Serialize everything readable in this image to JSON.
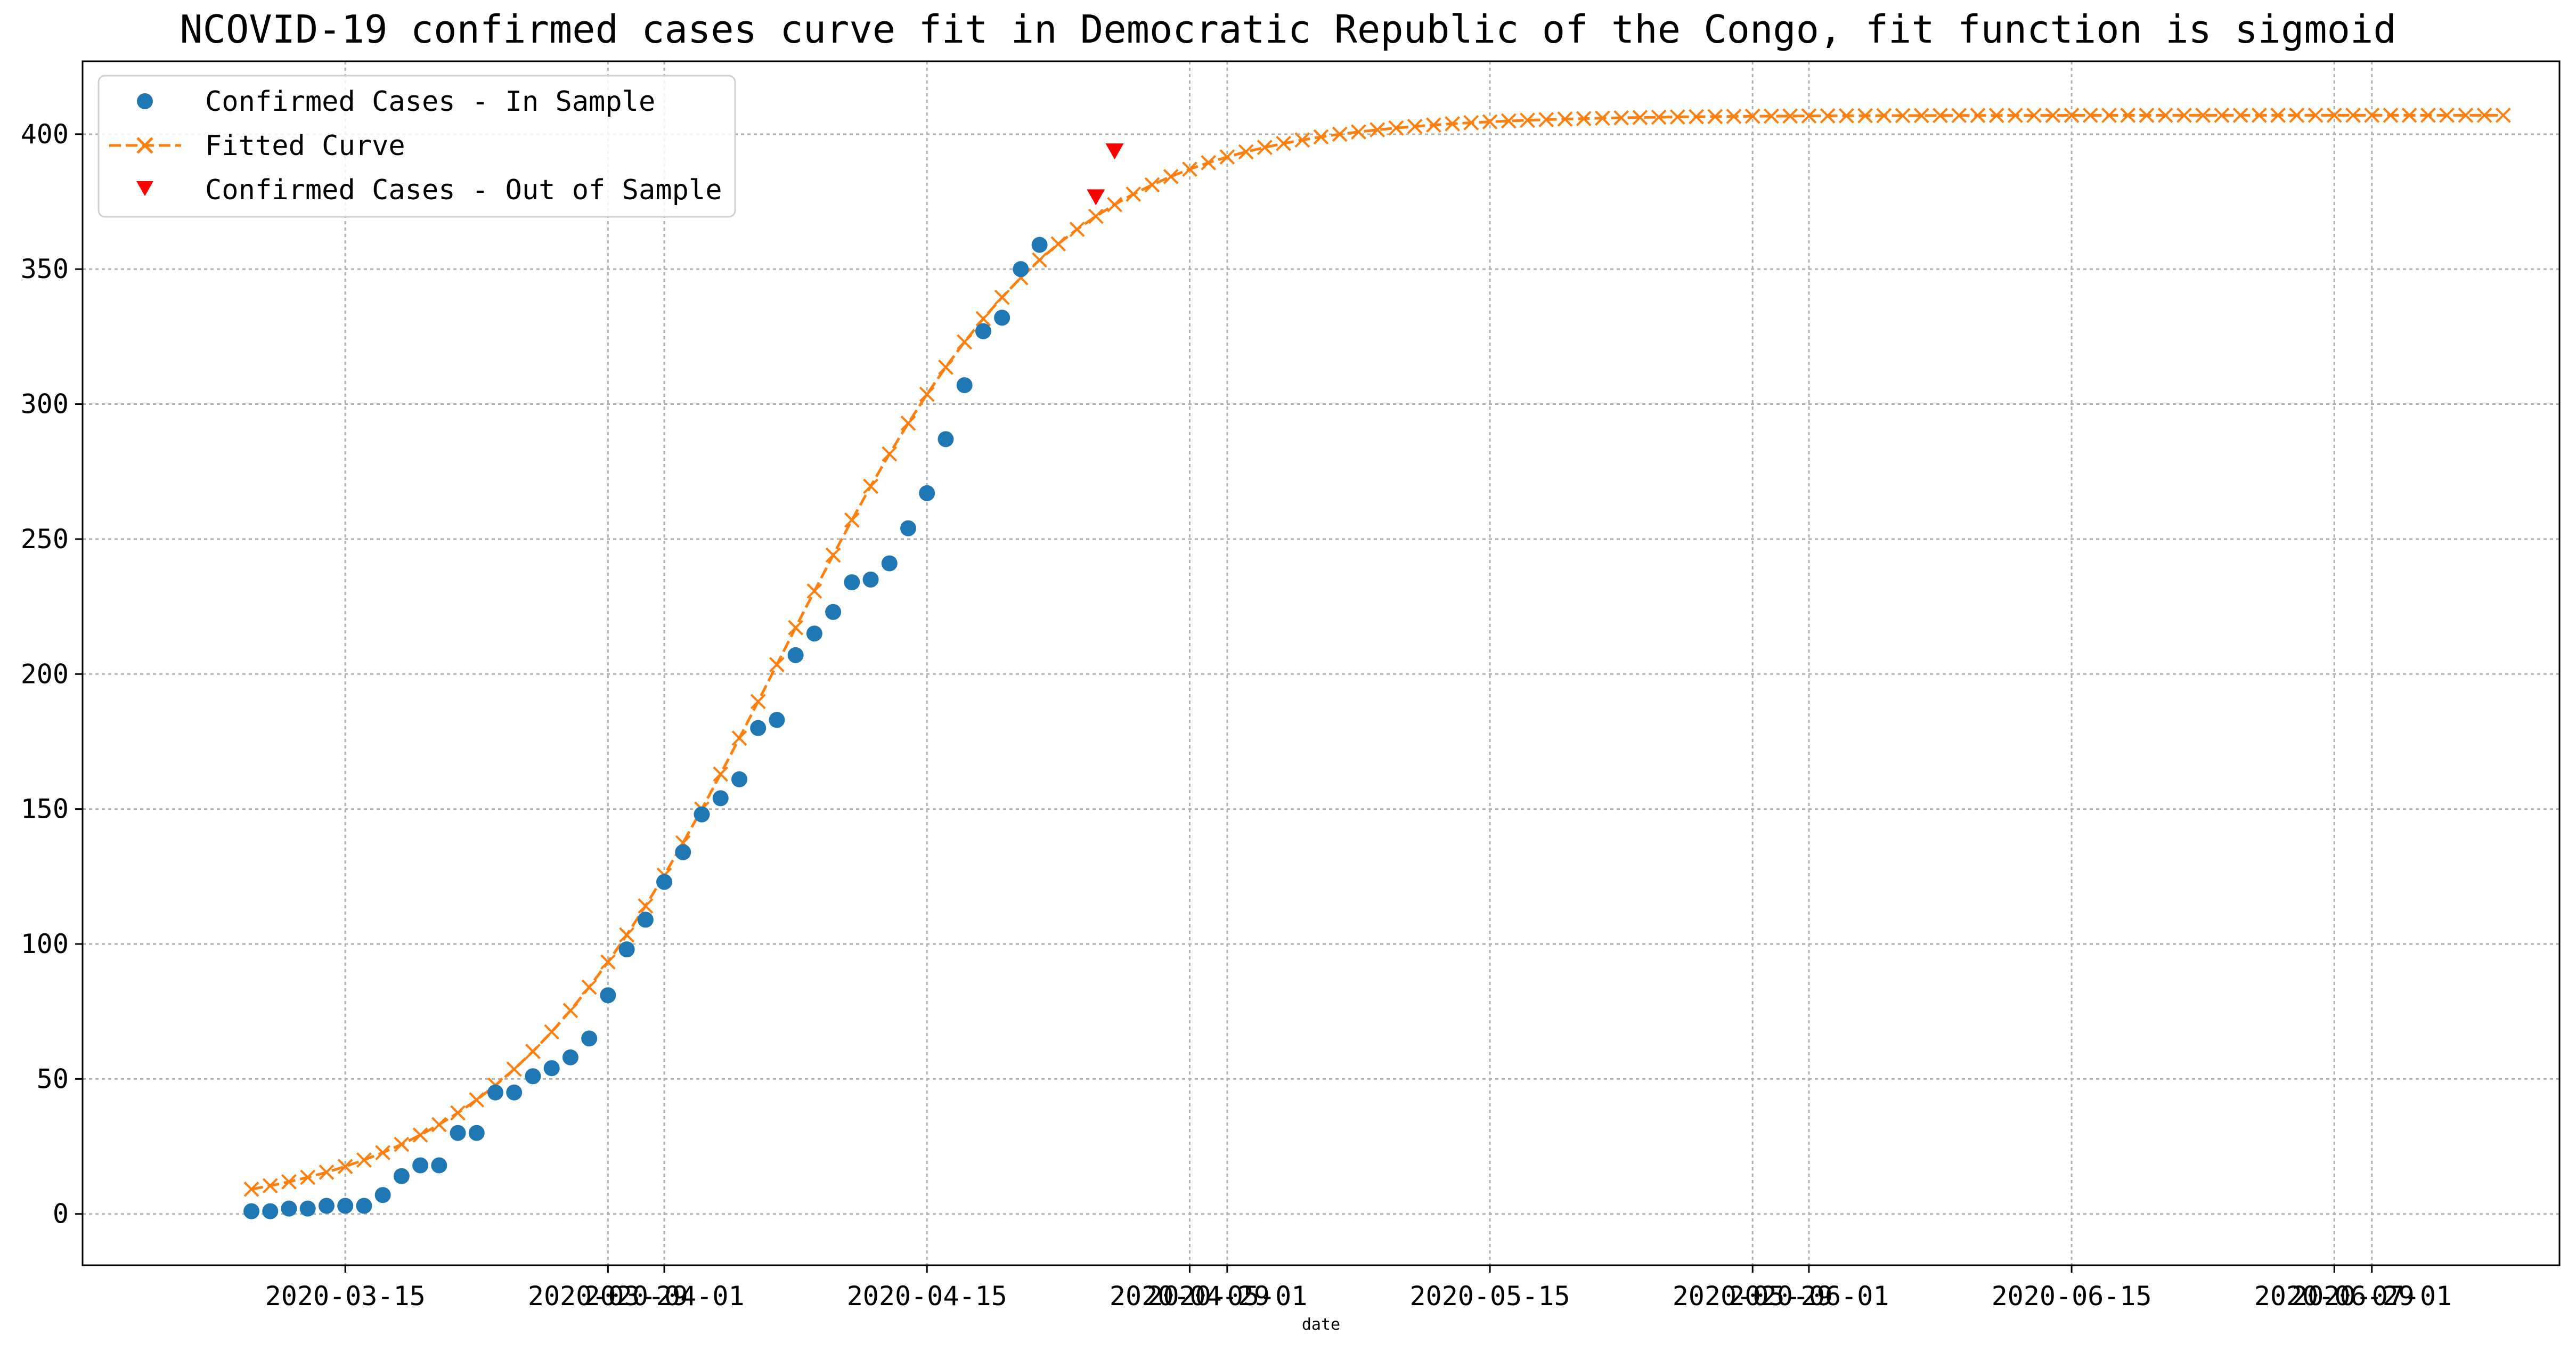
{
  "chart_data": {
    "type": "line",
    "title": "NCOVID-19 confirmed cases curve fit in Democratic Republic of the Congo, fit function is sigmoid",
    "xlabel": "date",
    "ylabel": "",
    "ylim": [
      -19,
      427
    ],
    "xlim": [
      "2020-03-01",
      "2020-07-11"
    ],
    "grid": true,
    "legend_position": "top-left",
    "y_ticks": [
      0,
      50,
      100,
      150,
      200,
      250,
      300,
      350,
      400
    ],
    "x_ticks": [
      {
        "date": "2020-03-15",
        "label": "2020-03-15"
      },
      {
        "date": "2020-03-29",
        "label": "2020-03-29"
      },
      {
        "date": "2020-04-01",
        "label": "2020-04-01"
      },
      {
        "date": "2020-04-15",
        "label": "2020-04-15"
      },
      {
        "date": "2020-04-29",
        "label": "2020-04-29"
      },
      {
        "date": "2020-05-01",
        "label": "2020-05-01"
      },
      {
        "date": "2020-05-15",
        "label": "2020-05-15"
      },
      {
        "date": "2020-05-29",
        "label": "2020-05-29"
      },
      {
        "date": "2020-06-01",
        "label": "2020-06-01"
      },
      {
        "date": "2020-06-15",
        "label": "2020-06-15"
      },
      {
        "date": "2020-06-29",
        "label": "2020-06-29"
      },
      {
        "date": "2020-07-01",
        "label": "2020-07-01"
      }
    ],
    "series": [
      {
        "name": "Confirmed Cases - In Sample",
        "style": "scatter-circle",
        "color": "#1f77b4",
        "start_date": "2020-03-10",
        "values": [
          1,
          1,
          2,
          2,
          3,
          3,
          3,
          7,
          14,
          18,
          18,
          30,
          30,
          45,
          45,
          51,
          54,
          58,
          65,
          81,
          98,
          109,
          123,
          134,
          148,
          154,
          161,
          180,
          183,
          207,
          215,
          223,
          234,
          235,
          241,
          254,
          267,
          287,
          307,
          327,
          332,
          350,
          359
        ]
      },
      {
        "name": "Fitted Curve",
        "style": "dashed-line-x-marker",
        "color": "#ff7f0e",
        "start_date": "2020-03-10",
        "L": 407,
        "k": 0.1347,
        "x0_date": "2020-04-07",
        "end_date": "2020-07-08"
      },
      {
        "name": "Confirmed Cases - Out of Sample",
        "style": "scatter-triangle-down",
        "color": "#ff0000",
        "points": [
          {
            "date": "2020-04-24",
            "value": 377
          },
          {
            "date": "2020-04-25",
            "value": 394
          }
        ]
      }
    ]
  }
}
